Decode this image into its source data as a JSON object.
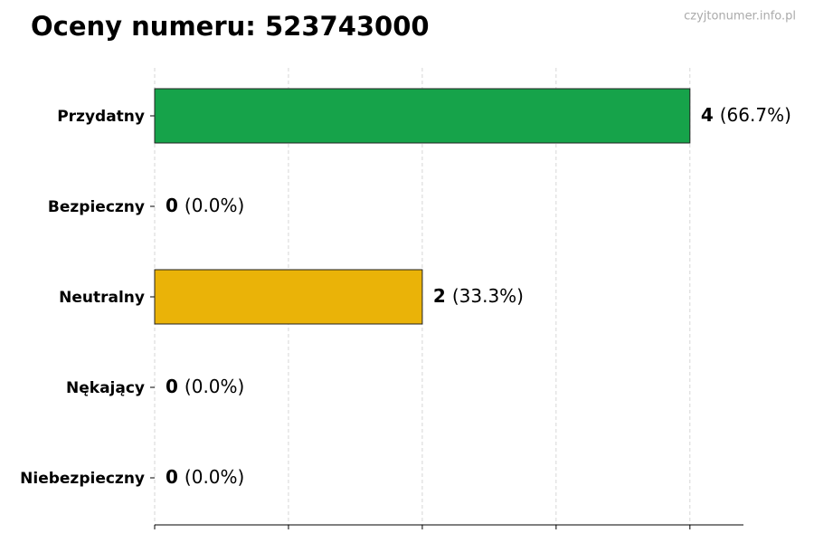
{
  "watermark": "czyjtonumer.info.pl",
  "chart_data": {
    "type": "bar",
    "orientation": "horizontal",
    "title": "Oceny numeru: 523743000",
    "categories": [
      "Przydatny",
      "Bezpieczny",
      "Neutralny",
      "Nękający",
      "Niebezpieczny"
    ],
    "values": [
      4,
      0,
      2,
      0,
      0
    ],
    "share_labels": [
      "(66.7%)",
      "(0.0%)",
      "(33.3%)",
      "(0.0%)",
      "(0.0%)"
    ],
    "colors": [
      "#16a34a",
      "#2563eb",
      "#eab308",
      "#f97316",
      "#dc2626"
    ],
    "xlim": [
      0,
      4.4
    ],
    "xticks": [
      0,
      1,
      2,
      3,
      4
    ],
    "grid": true
  }
}
